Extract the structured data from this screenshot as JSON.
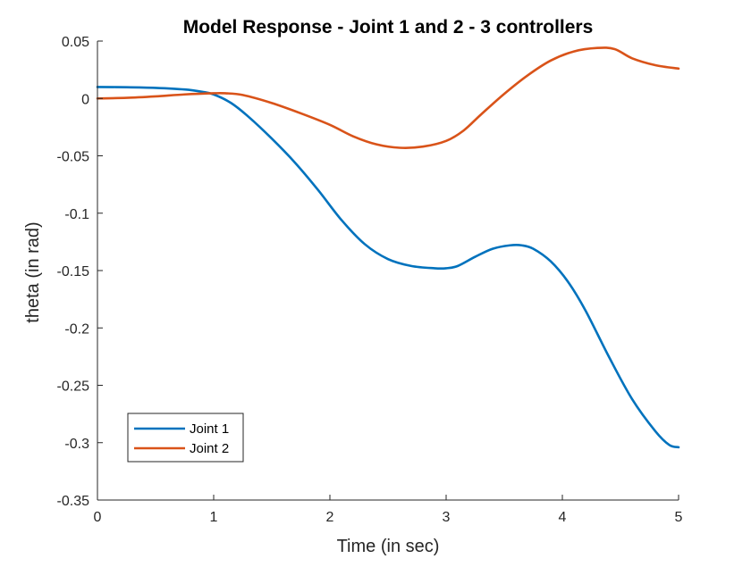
{
  "chart_data": {
    "type": "line",
    "title": "Model Response - Joint 1 and 2 - 3 controllers",
    "xlabel": "Time (in sec)",
    "ylabel": "theta (in rad)",
    "xlim": [
      0,
      5
    ],
    "ylim": [
      -0.35,
      0.05
    ],
    "xticks": [
      0,
      1,
      2,
      3,
      4,
      5
    ],
    "xtick_labels": [
      "0",
      "1",
      "2",
      "3",
      "4",
      "5"
    ],
    "yticks": [
      0.05,
      0,
      -0.05,
      -0.1,
      -0.15,
      -0.2,
      -0.25,
      -0.3,
      -0.35
    ],
    "ytick_labels": [
      "0.05",
      "0",
      "-0.05",
      "-0.1",
      "-0.15",
      "-0.2",
      "-0.25",
      "-0.3",
      "-0.35"
    ],
    "grid": false,
    "legend_position": "bottom-left",
    "series": [
      {
        "name": "Joint 1",
        "color": "#0072BD",
        "x": [
          0,
          0.25,
          0.5,
          0.75,
          0.9,
          1.0,
          1.15,
          1.3,
          1.5,
          1.7,
          1.9,
          2.1,
          2.3,
          2.5,
          2.7,
          2.9,
          3.0,
          3.1,
          3.25,
          3.4,
          3.55,
          3.65,
          3.75,
          3.9,
          4.05,
          4.2,
          4.4,
          4.6,
          4.8,
          4.92,
          5.0
        ],
        "y": [
          0.01,
          0.0098,
          0.0092,
          0.0078,
          0.0058,
          0.0035,
          -0.004,
          -0.016,
          -0.035,
          -0.056,
          -0.08,
          -0.106,
          -0.127,
          -0.14,
          -0.146,
          -0.148,
          -0.148,
          -0.146,
          -0.138,
          -0.131,
          -0.128,
          -0.128,
          -0.131,
          -0.142,
          -0.16,
          -0.185,
          -0.225,
          -0.262,
          -0.29,
          -0.302,
          -0.304
        ]
      },
      {
        "name": "Joint 2",
        "color": "#D95319",
        "x": [
          0,
          0.25,
          0.5,
          0.75,
          1.0,
          1.1,
          1.25,
          1.5,
          1.75,
          2.0,
          2.2,
          2.4,
          2.6,
          2.8,
          3.0,
          3.15,
          3.3,
          3.5,
          3.7,
          3.9,
          4.1,
          4.3,
          4.45,
          4.6,
          4.8,
          5.0
        ],
        "y": [
          0.0,
          0.0005,
          0.0018,
          0.0035,
          0.0045,
          0.0045,
          0.003,
          -0.004,
          -0.013,
          -0.023,
          -0.033,
          -0.04,
          -0.043,
          -0.042,
          -0.037,
          -0.028,
          -0.014,
          0.004,
          0.02,
          0.033,
          0.041,
          0.044,
          0.043,
          0.035,
          0.029,
          0.026
        ]
      }
    ]
  }
}
